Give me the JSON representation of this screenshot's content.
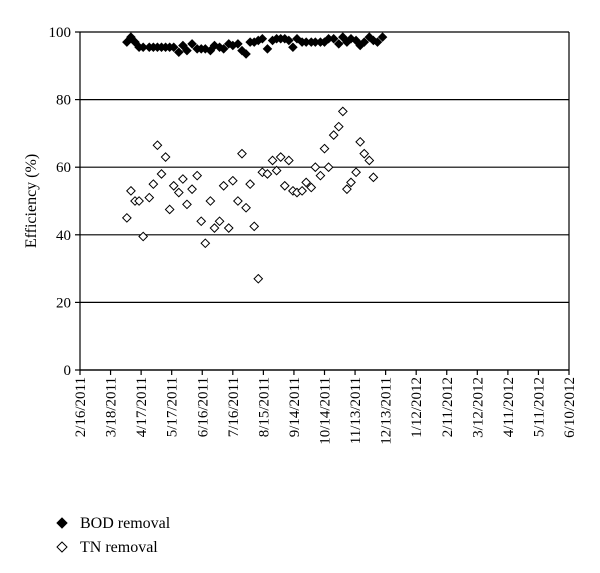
{
  "chart_data": {
    "type": "scatter",
    "title": "",
    "xlabel": "",
    "ylabel": "Efficiency (%)",
    "ylim": [
      0,
      100
    ],
    "yticks": [
      "0",
      "20",
      "40",
      "60",
      "80",
      "100"
    ],
    "xlim": [
      "2/16/2011",
      "6/10/2012"
    ],
    "xticks": [
      "2/16/2011",
      "3/18/2011",
      "4/17/2011",
      "5/17/2011",
      "6/16/2011",
      "7/16/2011",
      "8/15/2011",
      "9/14/2011",
      "10/14/2011",
      "11/13/2011",
      "12/13/2011",
      "1/12/2012",
      "2/11/2012",
      "3/12/2012",
      "4/11/2012",
      "5/11/2012",
      "6/10/2012"
    ],
    "grid": "horizontal",
    "legend_position": "bottom-left",
    "series": [
      {
        "name": "BOD removal",
        "marker": "filled-diamond",
        "color": "#000000",
        "points": [
          [
            "4/3/2011",
            97
          ],
          [
            "4/7/2011",
            98.5
          ],
          [
            "4/11/2011",
            97
          ],
          [
            "4/15/2011",
            95.5
          ],
          [
            "4/19/2011",
            95.5
          ],
          [
            "4/25/2011",
            95.5
          ],
          [
            "4/29/2011",
            95.5
          ],
          [
            "5/3/2011",
            95.5
          ],
          [
            "5/7/2011",
            95.5
          ],
          [
            "5/11/2011",
            95.5
          ],
          [
            "5/15/2011",
            95.5
          ],
          [
            "5/19/2011",
            95.5
          ],
          [
            "5/24/2011",
            94
          ],
          [
            "5/28/2011",
            96
          ],
          [
            "6/1/2011",
            94.5
          ],
          [
            "6/6/2011",
            96.5
          ],
          [
            "6/11/2011",
            95
          ],
          [
            "6/15/2011",
            95
          ],
          [
            "6/19/2011",
            95
          ],
          [
            "6/24/2011",
            94.5
          ],
          [
            "6/28/2011",
            96
          ],
          [
            "7/3/2011",
            95.5
          ],
          [
            "7/7/2011",
            95
          ],
          [
            "7/12/2011",
            96.5
          ],
          [
            "7/16/2011",
            96
          ],
          [
            "7/21/2011",
            96.5
          ],
          [
            "7/25/2011",
            94.5
          ],
          [
            "7/29/2011",
            93.5
          ],
          [
            "8/2/2011",
            97
          ],
          [
            "8/6/2011",
            97
          ],
          [
            "8/10/2011",
            97.5
          ],
          [
            "8/14/2011",
            98
          ],
          [
            "8/19/2011",
            95
          ],
          [
            "8/24/2011",
            97.5
          ],
          [
            "8/28/2011",
            98
          ],
          [
            "9/1/2011",
            98
          ],
          [
            "9/5/2011",
            98
          ],
          [
            "9/9/2011",
            97.5
          ],
          [
            "9/13/2011",
            95.5
          ],
          [
            "9/17/2011",
            98
          ],
          [
            "9/22/2011",
            97
          ],
          [
            "9/26/2011",
            97
          ],
          [
            "10/1/2011",
            97
          ],
          [
            "10/5/2011",
            97
          ],
          [
            "10/10/2011",
            97
          ],
          [
            "10/14/2011",
            97
          ],
          [
            "10/18/2011",
            98
          ],
          [
            "10/23/2011",
            98
          ],
          [
            "10/28/2011",
            96.5
          ],
          [
            "11/1/2011",
            98.5
          ],
          [
            "11/5/2011",
            97
          ],
          [
            "11/9/2011",
            98
          ],
          [
            "11/14/2011",
            97.5
          ],
          [
            "11/18/2011",
            96
          ],
          [
            "11/22/2011",
            97
          ],
          [
            "11/27/2011",
            98.5
          ],
          [
            "12/1/2011",
            97.5
          ],
          [
            "12/5/2011",
            97
          ],
          [
            "12/10/2011",
            98.5
          ]
        ]
      },
      {
        "name": "TN removal",
        "marker": "open-diamond",
        "color": "#000000",
        "points": [
          [
            "4/3/2011",
            45
          ],
          [
            "4/7/2011",
            53
          ],
          [
            "4/11/2011",
            50
          ],
          [
            "4/15/2011",
            50
          ],
          [
            "4/19/2011",
            39.5
          ],
          [
            "4/25/2011",
            51
          ],
          [
            "4/29/2011",
            55
          ],
          [
            "5/3/2011",
            66.5
          ],
          [
            "5/7/2011",
            58
          ],
          [
            "5/11/2011",
            63
          ],
          [
            "5/15/2011",
            47.5
          ],
          [
            "5/19/2011",
            54.5
          ],
          [
            "5/24/2011",
            52.5
          ],
          [
            "5/28/2011",
            56.5
          ],
          [
            "6/1/2011",
            49
          ],
          [
            "6/6/2011",
            53.5
          ],
          [
            "6/11/2011",
            57.5
          ],
          [
            "6/15/2011",
            44
          ],
          [
            "6/19/2011",
            37.5
          ],
          [
            "6/24/2011",
            50
          ],
          [
            "6/28/2011",
            42
          ],
          [
            "7/3/2011",
            44
          ],
          [
            "7/7/2011",
            54.5
          ],
          [
            "7/12/2011",
            42
          ],
          [
            "7/16/2011",
            56
          ],
          [
            "7/21/2011",
            50
          ],
          [
            "7/25/2011",
            64
          ],
          [
            "7/29/2011",
            48
          ],
          [
            "8/2/2011",
            55
          ],
          [
            "8/6/2011",
            42.5
          ],
          [
            "8/10/2011",
            27
          ],
          [
            "8/14/2011",
            58.5
          ],
          [
            "8/19/2011",
            58
          ],
          [
            "8/24/2011",
            62
          ],
          [
            "8/28/2011",
            59
          ],
          [
            "9/1/2011",
            63
          ],
          [
            "9/5/2011",
            54.5
          ],
          [
            "9/9/2011",
            62
          ],
          [
            "9/13/2011",
            53
          ],
          [
            "9/17/2011",
            52.5
          ],
          [
            "9/22/2011",
            53
          ],
          [
            "9/26/2011",
            55.5
          ],
          [
            "10/1/2011",
            54
          ],
          [
            "10/5/2011",
            60
          ],
          [
            "10/10/2011",
            57.5
          ],
          [
            "10/14/2011",
            65.5
          ],
          [
            "10/18/2011",
            60
          ],
          [
            "10/23/2011",
            69.5
          ],
          [
            "10/28/2011",
            72
          ],
          [
            "11/1/2011",
            76.5
          ],
          [
            "11/5/2011",
            53.5
          ],
          [
            "11/9/2011",
            55.5
          ],
          [
            "11/14/2011",
            58.5
          ],
          [
            "11/18/2011",
            67.5
          ],
          [
            "11/22/2011",
            64
          ],
          [
            "11/27/2011",
            62
          ],
          [
            "12/1/2011",
            57
          ]
        ]
      }
    ]
  }
}
